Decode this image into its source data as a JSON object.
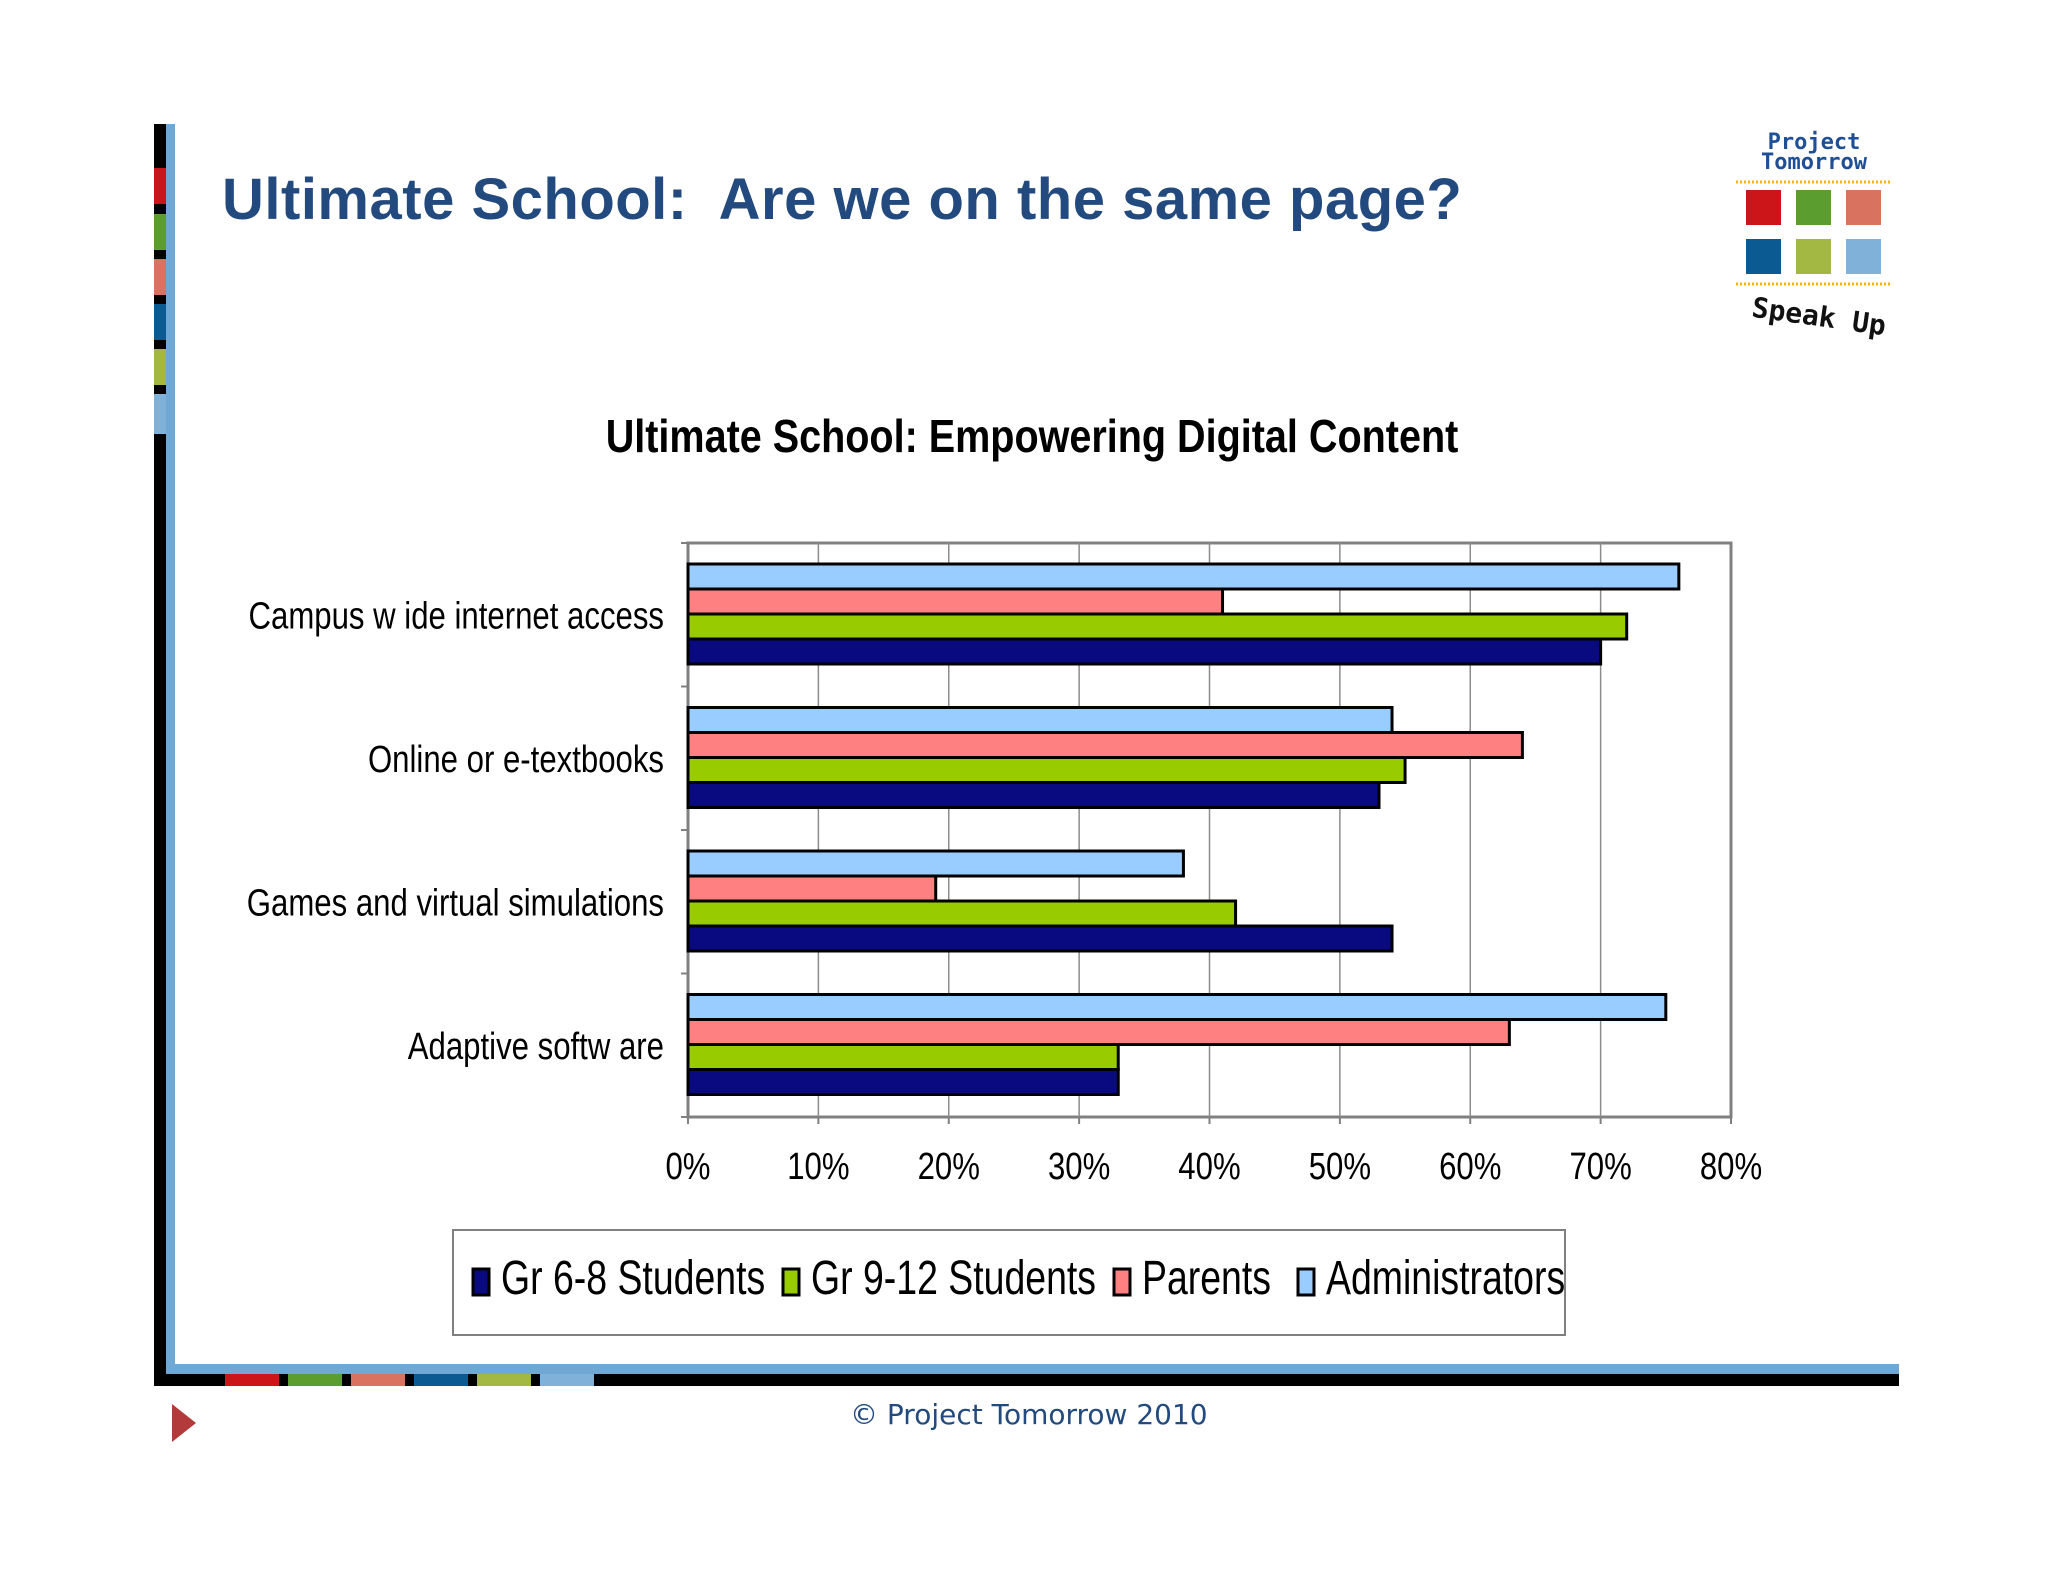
{
  "slide": {
    "title": "Ultimate School:  Are we on the same page?",
    "footer": "© Project Tomorrow 2010",
    "brand_colors": [
      "#cc1519",
      "#5b9d2e",
      "#d9735f",
      "#0b5a91",
      "#a3b843",
      "#7fb1d9"
    ]
  },
  "logo": {
    "line1": "Project",
    "line2": "Tomorrow",
    "tagline": "Speak Up"
  },
  "chart_data": {
    "type": "bar",
    "orientation": "horizontal",
    "title": "Ultimate School: Empowering Digital Content",
    "categories": [
      "Campus w ide internet access",
      "Online or e-textbooks",
      "Games and virtual simulations",
      "Adaptive softw are"
    ],
    "series": [
      {
        "name": "Gr 6-8 Students",
        "color": "#0a0a80",
        "values": [
          70,
          53,
          54,
          33
        ]
      },
      {
        "name": "Gr 9-12 Students",
        "color": "#99cc00",
        "values": [
          72,
          55,
          42,
          33
        ]
      },
      {
        "name": "Parents",
        "color": "#ff8080",
        "values": [
          41,
          64,
          19,
          63
        ]
      },
      {
        "name": "Administrators",
        "color": "#99ccff",
        "values": [
          76,
          54,
          38,
          75
        ]
      }
    ],
    "xlim": [
      0,
      80
    ],
    "xticks": [
      "0%",
      "10%",
      "20%",
      "30%",
      "40%",
      "50%",
      "60%",
      "70%",
      "80%"
    ],
    "grid": true,
    "legend": "bottom"
  }
}
